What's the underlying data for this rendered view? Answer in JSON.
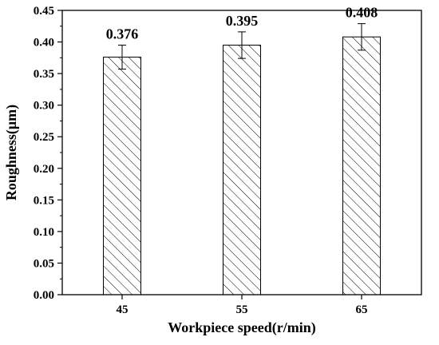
{
  "chart_data": {
    "type": "bar",
    "title": "",
    "xlabel": "Workpiece speed(r/min)",
    "ylabel": "Roughness(μm)",
    "categories": [
      "45",
      "55",
      "65"
    ],
    "values": [
      0.376,
      0.395,
      0.408
    ],
    "error": [
      0.019,
      0.021,
      0.021
    ],
    "data_labels": [
      "0.376",
      "0.395",
      "0.408"
    ],
    "ylim": [
      0.0,
      0.45
    ],
    "yticks": [
      "0.00",
      "0.05",
      "0.10",
      "0.15",
      "0.20",
      "0.25",
      "0.30",
      "0.35",
      "0.40",
      "0.45"
    ],
    "grid": false,
    "bar_fill": "hatched-diagonal",
    "colors": {
      "bar_stroke": "#000000",
      "hatch": "#000000",
      "axis": "#000000",
      "background": "#ffffff"
    }
  }
}
